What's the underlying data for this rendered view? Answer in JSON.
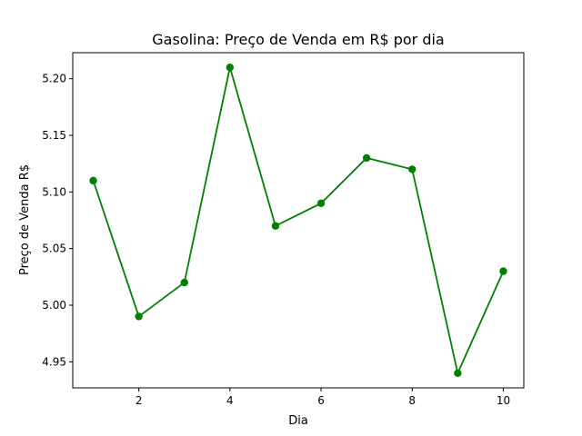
{
  "chart_data": {
    "type": "line",
    "title": "Gasolina: Preço de Venda em R$ por dia",
    "xlabel": "Dia",
    "ylabel": "Preço de Venda R$",
    "x": [
      1,
      2,
      3,
      4,
      5,
      6,
      7,
      8,
      9,
      10
    ],
    "series": [
      {
        "values": [
          5.11,
          4.99,
          5.02,
          5.21,
          5.07,
          5.09,
          5.13,
          5.12,
          4.94,
          5.03
        ],
        "color": "#008000",
        "marker": "circle"
      }
    ],
    "xlim": [
      0.55,
      10.45
    ],
    "ylim": [
      4.927,
      5.223
    ],
    "xticks": [
      2,
      4,
      6,
      8,
      10
    ],
    "xtick_labels": [
      "2",
      "4",
      "6",
      "8",
      "10"
    ],
    "yticks": [
      4.95,
      5.0,
      5.05,
      5.1,
      5.15,
      5.2
    ],
    "ytick_labels": [
      "4.95",
      "5.00",
      "5.05",
      "5.10",
      "5.15",
      "5.20"
    ],
    "grid": false,
    "legend": "none"
  }
}
